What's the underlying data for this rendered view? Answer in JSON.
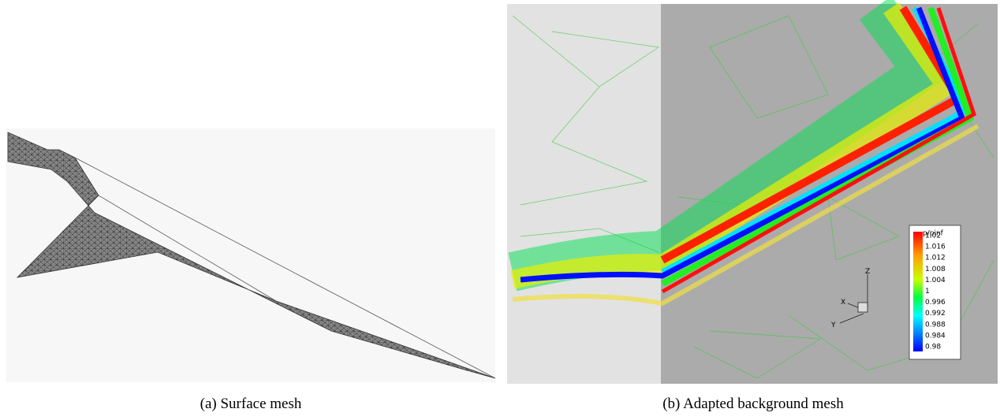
{
  "figure_a": {
    "caption": "(a) Surface mesh"
  },
  "figure_b": {
    "caption": "(b) Adapted background mesh",
    "legend": {
      "title": "p/pinf",
      "labels": [
        "1.02",
        "1.016",
        "1.012",
        "1.008",
        "1.004",
        "1",
        "0.996",
        "0.992",
        "0.988",
        "0.984",
        "0.98"
      ]
    },
    "axes": {
      "z": "Z",
      "x": "X",
      "y": "Y"
    }
  }
}
